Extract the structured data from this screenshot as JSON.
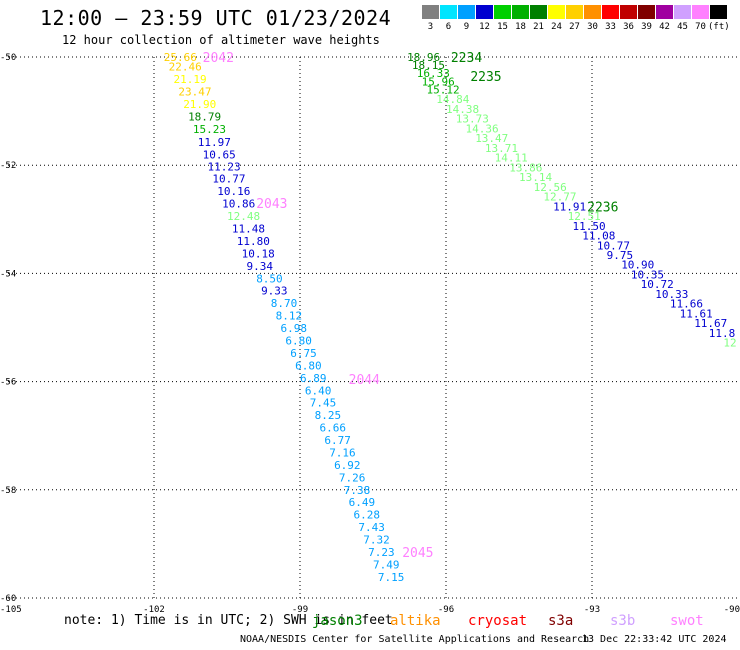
{
  "header": {
    "title": "12:00 – 23:59 UTC 01/23/2024",
    "subtitle": "12 hour collection of altimeter wave heights"
  },
  "legend": {
    "unit": "(ft)",
    "items": [
      {
        "label": "3",
        "color": "#808080"
      },
      {
        "label": "6",
        "color": "#00e5ff"
      },
      {
        "label": "9",
        "color": "#00a0ff"
      },
      {
        "label": "12",
        "color": "#0000d0"
      },
      {
        "label": "15",
        "color": "#00d000"
      },
      {
        "label": "18",
        "color": "#00b000"
      },
      {
        "label": "21",
        "color": "#008000"
      },
      {
        "label": "24",
        "color": "#ffff00"
      },
      {
        "label": "27",
        "color": "#ffd000"
      },
      {
        "label": "30",
        "color": "#ff9000"
      },
      {
        "label": "33",
        "color": "#ff0000"
      },
      {
        "label": "36",
        "color": "#c00000"
      },
      {
        "label": "39",
        "color": "#800000"
      },
      {
        "label": "42",
        "color": "#a000a0"
      },
      {
        "label": "45",
        "color": "#d0a0ff"
      },
      {
        "label": "70",
        "color": "#ff80ff"
      },
      {
        "label": "",
        "color": "#000000"
      }
    ]
  },
  "chart_data": {
    "type": "scatter",
    "xlim": [
      -105,
      -90
    ],
    "ylim": [
      -60,
      -50
    ],
    "xticks": [
      "-105",
      "-102",
      "-99",
      "-96",
      "-93",
      "-90"
    ],
    "yticks": [
      "-50",
      "-52",
      "-54",
      "-56",
      "-58",
      "-60"
    ],
    "grid": true,
    "series": [
      {
        "track": "left",
        "points": [
          {
            "x": -101.8,
            "y": -50.0,
            "value": "25.66",
            "color": "#ffd000"
          },
          {
            "x": -101.7,
            "y": -50.18,
            "value": "22.46",
            "color": "#ffd000"
          },
          {
            "x": -101.6,
            "y": -50.41,
            "value": "21.19",
            "color": "#ffff00"
          },
          {
            "x": -101.5,
            "y": -50.64,
            "value": "23.47",
            "color": "#ffd000"
          },
          {
            "x": -101.4,
            "y": -50.87,
            "value": "21.90",
            "color": "#ffff00"
          },
          {
            "x": -101.3,
            "y": -51.1,
            "value": "18.79",
            "color": "#008000"
          },
          {
            "x": -101.2,
            "y": -51.33,
            "value": "15.23",
            "color": "#00b000"
          },
          {
            "x": -101.1,
            "y": -51.57,
            "value": "11.97",
            "color": "#0000d0"
          },
          {
            "x": -101.0,
            "y": -51.8,
            "value": "10.65",
            "color": "#0000d0"
          },
          {
            "x": -100.9,
            "y": -52.02,
            "value": "11.23",
            "color": "#0000d0"
          },
          {
            "x": -100.8,
            "y": -52.25,
            "value": "10.77",
            "color": "#0000d0"
          },
          {
            "x": -100.7,
            "y": -52.48,
            "value": "10.16",
            "color": "#0000d0"
          },
          {
            "x": -100.6,
            "y": -52.71,
            "value": "10.86",
            "color": "#0000d0"
          },
          {
            "x": -100.5,
            "y": -52.94,
            "value": "12.48",
            "color": "#80ff80"
          },
          {
            "x": -100.4,
            "y": -53.17,
            "value": "11.48",
            "color": "#0000d0"
          },
          {
            "x": -100.3,
            "y": -53.4,
            "value": "11.80",
            "color": "#0000d0"
          },
          {
            "x": -100.2,
            "y": -53.63,
            "value": "10.18",
            "color": "#0000d0"
          },
          {
            "x": -100.1,
            "y": -53.86,
            "value": "9.34",
            "color": "#0000d0"
          },
          {
            "x": -99.9,
            "y": -54.09,
            "value": "8.50",
            "color": "#00a0ff"
          },
          {
            "x": -99.8,
            "y": -54.32,
            "value": "9.33",
            "color": "#0000d0"
          },
          {
            "x": -99.6,
            "y": -54.55,
            "value": "8.70",
            "color": "#00a0ff"
          },
          {
            "x": -99.5,
            "y": -54.78,
            "value": "8.12",
            "color": "#00a0ff"
          },
          {
            "x": -99.4,
            "y": -55.01,
            "value": "6.98",
            "color": "#00a0ff"
          },
          {
            "x": -99.3,
            "y": -55.24,
            "value": "6.80",
            "color": "#00a0ff"
          },
          {
            "x": -99.2,
            "y": -55.47,
            "value": "6.75",
            "color": "#00a0ff"
          },
          {
            "x": -99.1,
            "y": -55.7,
            "value": "6.80",
            "color": "#00a0ff"
          },
          {
            "x": -99.0,
            "y": -55.93,
            "value": "6.89",
            "color": "#00a0ff"
          },
          {
            "x": -98.9,
            "y": -56.16,
            "value": "6.40",
            "color": "#00a0ff"
          },
          {
            "x": -98.8,
            "y": -56.39,
            "value": "7.45",
            "color": "#00a0ff"
          },
          {
            "x": -98.7,
            "y": -56.62,
            "value": "8.25",
            "color": "#00a0ff"
          },
          {
            "x": -98.6,
            "y": -56.85,
            "value": "6.66",
            "color": "#00a0ff"
          },
          {
            "x": -98.5,
            "y": -57.08,
            "value": "6.77",
            "color": "#00a0ff"
          },
          {
            "x": -98.4,
            "y": -57.31,
            "value": "7.16",
            "color": "#00a0ff"
          },
          {
            "x": -98.3,
            "y": -57.54,
            "value": "6.92",
            "color": "#00a0ff"
          },
          {
            "x": -98.2,
            "y": -57.77,
            "value": "7.26",
            "color": "#00a0ff"
          },
          {
            "x": -98.1,
            "y": -58.0,
            "value": "7.38",
            "color": "#00a0ff"
          },
          {
            "x": -98.0,
            "y": -58.23,
            "value": "6.49",
            "color": "#00a0ff"
          },
          {
            "x": -97.9,
            "y": -58.46,
            "value": "6.28",
            "color": "#00a0ff"
          },
          {
            "x": -97.8,
            "y": -58.69,
            "value": "7.43",
            "color": "#00a0ff"
          },
          {
            "x": -97.7,
            "y": -58.92,
            "value": "7.32",
            "color": "#00a0ff"
          },
          {
            "x": -97.6,
            "y": -59.15,
            "value": "7.23",
            "color": "#00a0ff"
          },
          {
            "x": -97.5,
            "y": -59.38,
            "value": "7.49",
            "color": "#00a0ff"
          },
          {
            "x": -97.4,
            "y": -59.61,
            "value": "7.15",
            "color": "#00a0ff"
          }
        ]
      },
      {
        "track": "right",
        "points": [
          {
            "x": -96.8,
            "y": -50.0,
            "value": "18.96",
            "color": "#008000"
          },
          {
            "x": -96.7,
            "y": -50.15,
            "value": "18.15",
            "color": "#008000"
          },
          {
            "x": -96.6,
            "y": -50.3,
            "value": "16.33",
            "color": "#00b000"
          },
          {
            "x": -96.5,
            "y": -50.45,
            "value": "15.96",
            "color": "#00b000"
          },
          {
            "x": -96.4,
            "y": -50.6,
            "value": "15.12",
            "color": "#00b000"
          },
          {
            "x": -96.2,
            "y": -50.78,
            "value": "14.84",
            "color": "#80ff80"
          },
          {
            "x": -96.0,
            "y": -50.96,
            "value": "14.38",
            "color": "#80ff80"
          },
          {
            "x": -95.8,
            "y": -51.14,
            "value": "13.73",
            "color": "#80ff80"
          },
          {
            "x": -95.6,
            "y": -51.32,
            "value": "14.36",
            "color": "#80ff80"
          },
          {
            "x": -95.4,
            "y": -51.5,
            "value": "13.47",
            "color": "#80ff80"
          },
          {
            "x": -95.2,
            "y": -51.68,
            "value": "13.71",
            "color": "#80ff80"
          },
          {
            "x": -95.0,
            "y": -51.86,
            "value": "14.11",
            "color": "#80ff80"
          },
          {
            "x": -94.7,
            "y": -52.04,
            "value": "13.86",
            "color": "#80ff80"
          },
          {
            "x": -94.5,
            "y": -52.22,
            "value": "13.14",
            "color": "#80ff80"
          },
          {
            "x": -94.2,
            "y": -52.4,
            "value": "12.56",
            "color": "#80ff80"
          },
          {
            "x": -94.0,
            "y": -52.58,
            "value": "12.77",
            "color": "#80ff80"
          },
          {
            "x": -93.8,
            "y": -52.76,
            "value": "11.91",
            "color": "#0000d0"
          },
          {
            "x": -93.5,
            "y": -52.94,
            "value": "12.51",
            "color": "#80ff80"
          },
          {
            "x": -93.4,
            "y": -53.12,
            "value": "11.50",
            "color": "#0000d0"
          },
          {
            "x": -93.2,
            "y": -53.3,
            "value": "11.08",
            "color": "#0000d0"
          },
          {
            "x": -92.9,
            "y": -53.48,
            "value": "10.77",
            "color": "#0000d0"
          },
          {
            "x": -92.7,
            "y": -53.66,
            "value": "9.75",
            "color": "#0000d0"
          },
          {
            "x": -92.4,
            "y": -53.84,
            "value": "10.90",
            "color": "#0000d0"
          },
          {
            "x": -92.2,
            "y": -54.02,
            "value": "10.35",
            "color": "#0000d0"
          },
          {
            "x": -92.0,
            "y": -54.2,
            "value": "10.72",
            "color": "#0000d0"
          },
          {
            "x": -91.7,
            "y": -54.38,
            "value": "10.33",
            "color": "#0000d0"
          },
          {
            "x": -91.4,
            "y": -54.56,
            "value": "11.66",
            "color": "#0000d0"
          },
          {
            "x": -91.2,
            "y": -54.74,
            "value": "11.61",
            "color": "#0000d0"
          },
          {
            "x": -90.9,
            "y": -54.92,
            "value": "11.67",
            "color": "#0000d0"
          },
          {
            "x": -90.6,
            "y": -55.1,
            "value": "11.8",
            "color": "#0000d0"
          },
          {
            "x": -90.3,
            "y": -55.28,
            "value": "12",
            "color": "#80ff80"
          }
        ]
      }
    ],
    "time_labels": [
      {
        "x": -101.0,
        "y": -50.0,
        "text": "2042",
        "color": "#ff80ff"
      },
      {
        "x": -99.9,
        "y": -52.7,
        "text": "2043",
        "color": "#ff80ff"
      },
      {
        "x": -98.0,
        "y": -55.95,
        "text": "2044",
        "color": "#ff80ff"
      },
      {
        "x": -96.9,
        "y": -59.15,
        "text": "2045",
        "color": "#ff80ff"
      },
      {
        "x": -95.9,
        "y": -50.0,
        "text": "2234",
        "color": "#008000"
      },
      {
        "x": -95.5,
        "y": -50.35,
        "text": "2235",
        "color": "#008000"
      },
      {
        "x": -93.1,
        "y": -52.76,
        "text": "2236",
        "color": "#008000"
      }
    ]
  },
  "footer": {
    "note": "note: 1) Time is in UTC; 2) SWH is in feet",
    "missions": [
      {
        "name": "jason3",
        "color": "#008000"
      },
      {
        "name": "altika",
        "color": "#ff9000"
      },
      {
        "name": "cryosat",
        "color": "#ff0000"
      },
      {
        "name": "s3a",
        "color": "#800000"
      },
      {
        "name": "s3b",
        "color": "#d0a0ff"
      },
      {
        "name": "swot",
        "color": "#ff80ff"
      }
    ],
    "credit": "NOAA/NESDIS Center for Satellite Applications and Research",
    "timestamp": "13 Dec 22:33:42 UTC 2024"
  }
}
